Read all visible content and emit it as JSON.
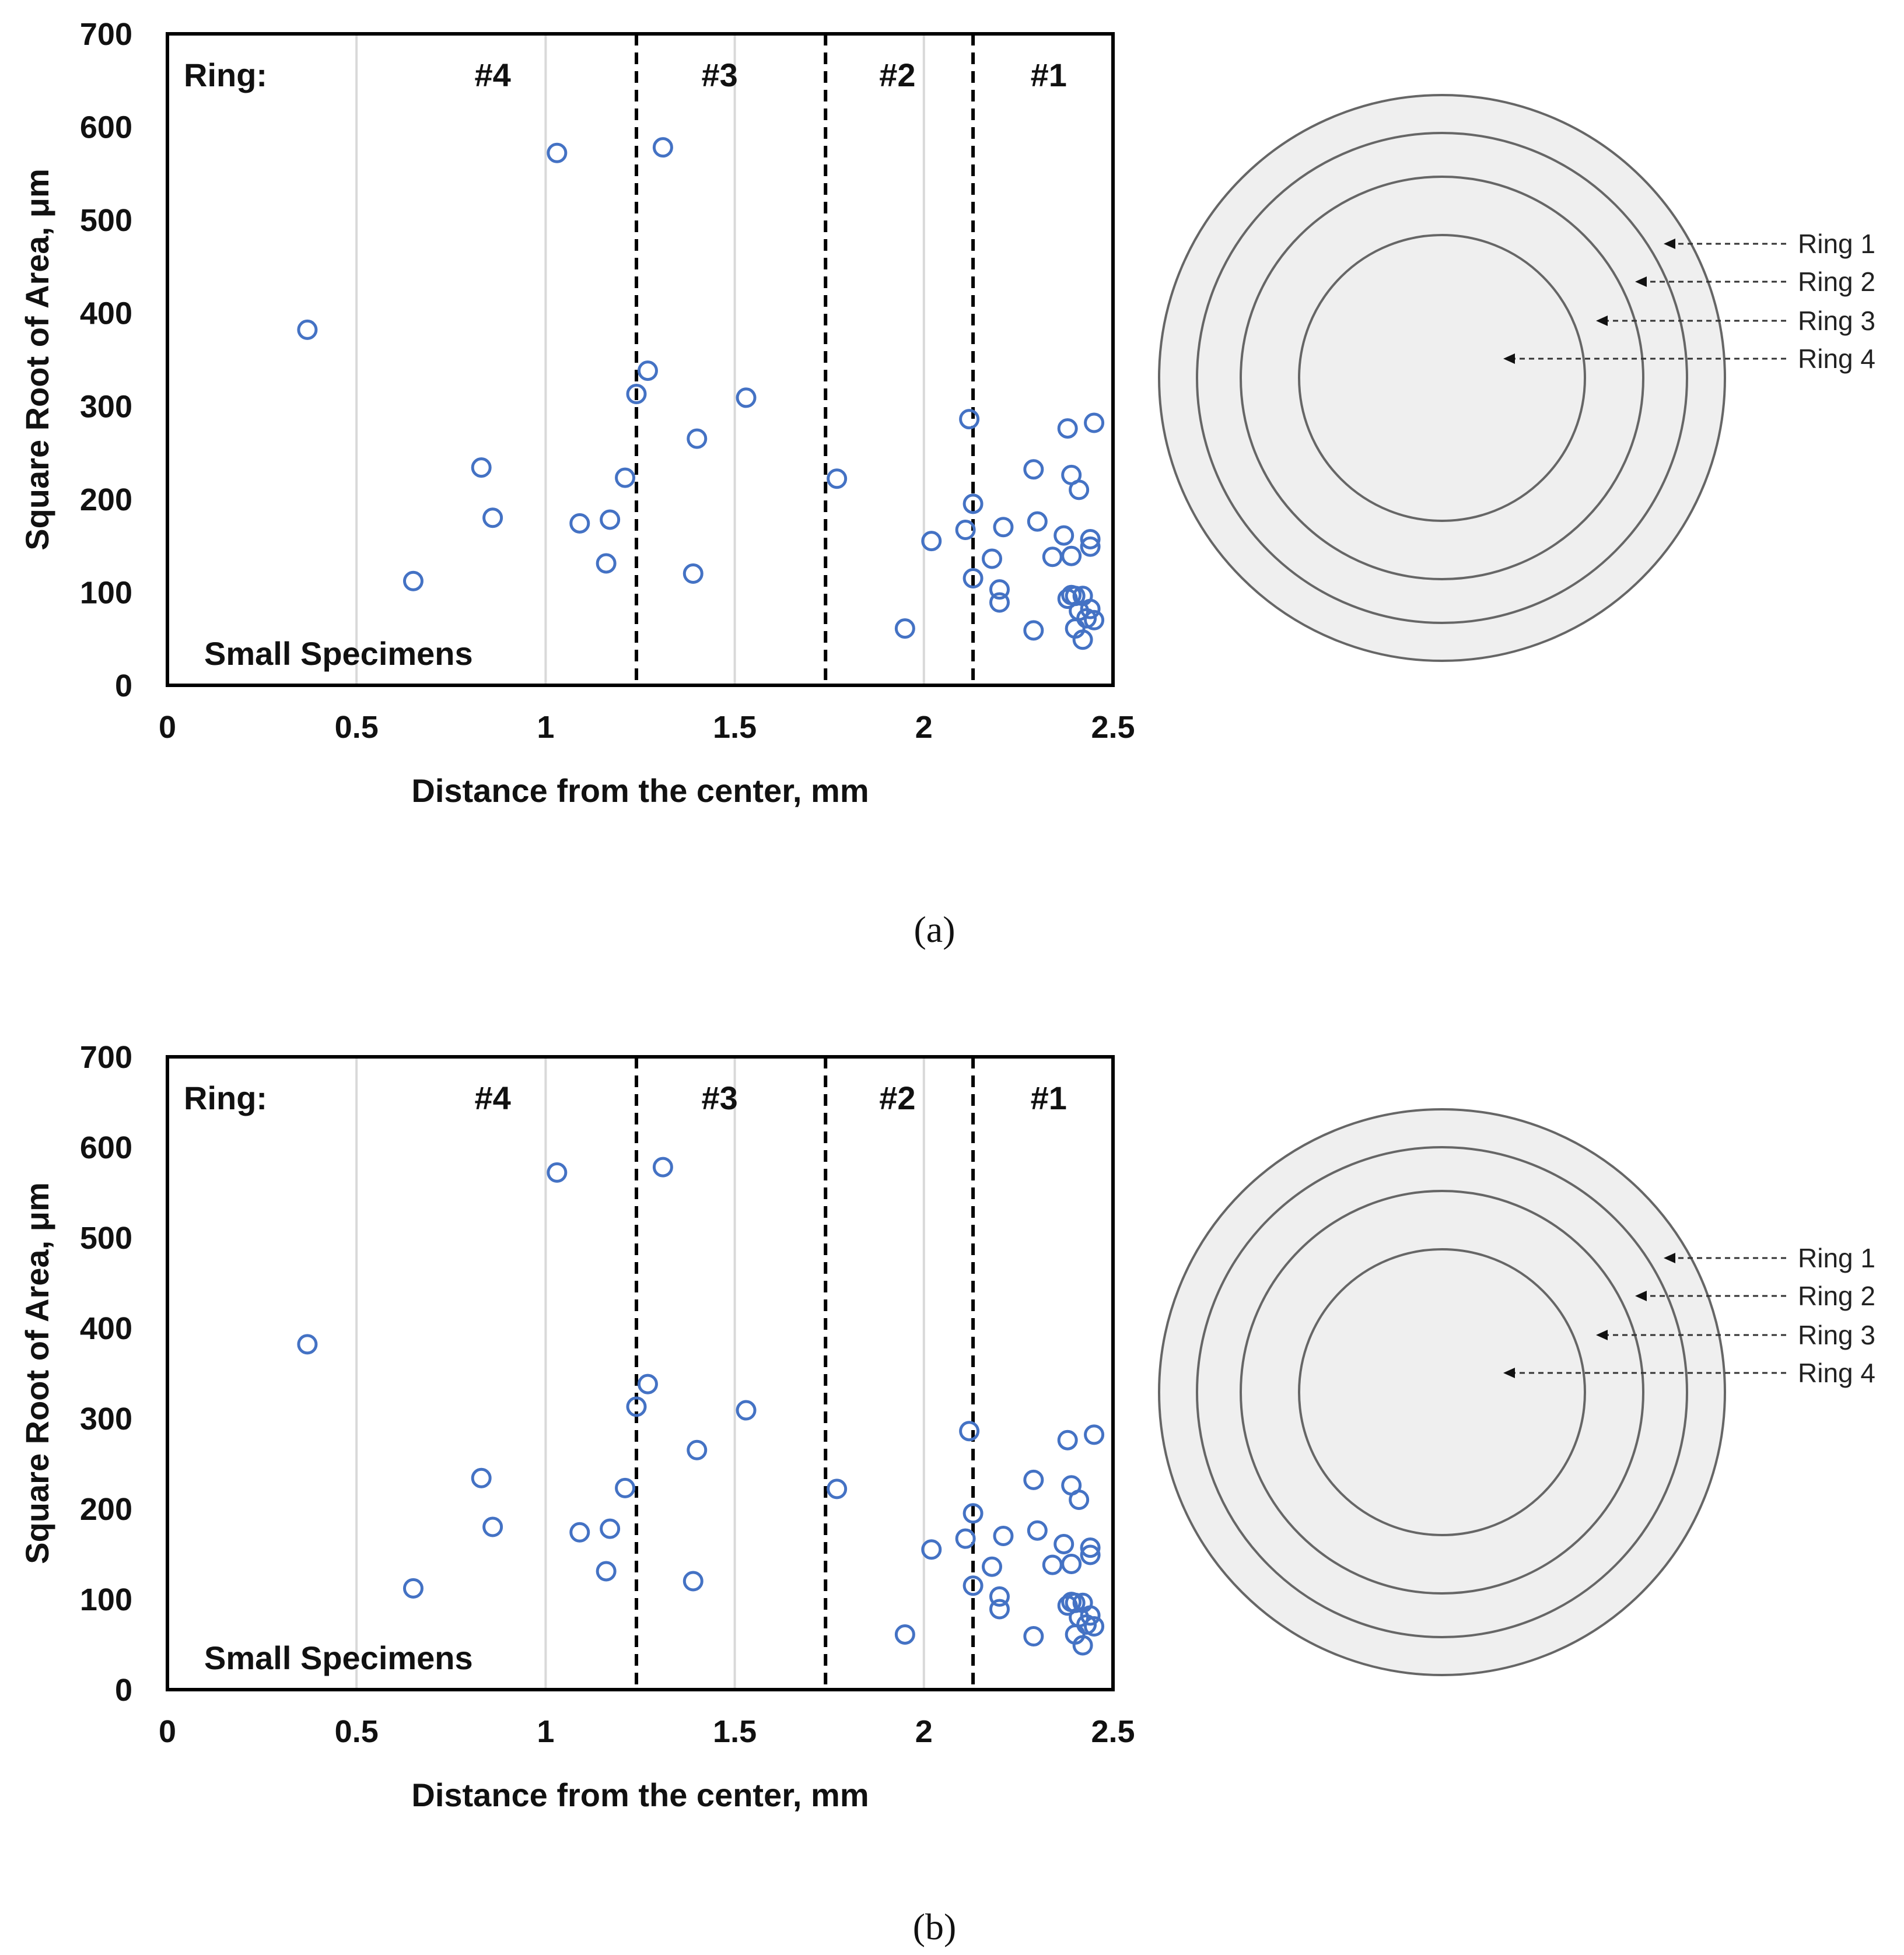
{
  "colors": {
    "marker": "#4472C4",
    "grid": "#D9D9D9",
    "frame": "#000000",
    "ring_fill": "#EFEFEF",
    "ring_stroke": "#666666"
  },
  "chart_data": [
    {
      "type": "scatter",
      "panel_label": "(a)",
      "panel_letter": "a",
      "xlabel": "Distance from the center, mm",
      "ylabel": "Square Root of Area, μm",
      "xlim": [
        0,
        2.5
      ],
      "ylim": [
        0,
        700
      ],
      "xticks": [
        0,
        0.5,
        1,
        1.5,
        2,
        2.5
      ],
      "xtick_labels": [
        "0",
        "0.5",
        "1",
        "1.5",
        "2",
        "2.5"
      ],
      "yticks": [
        0,
        100,
        200,
        300,
        400,
        500,
        600,
        700
      ],
      "ytick_labels": [
        "0",
        "100",
        "200",
        "300",
        "400",
        "500",
        "600",
        "700"
      ],
      "grid": "vertical",
      "annotation": "Small Specimens",
      "zone_title": "Ring:",
      "zone_boundaries": [
        1.24,
        1.74,
        2.13
      ],
      "zones": [
        {
          "label": "#4",
          "center": 0.86
        },
        {
          "label": "#3",
          "center": 1.46
        },
        {
          "label": "#2",
          "center": 1.93
        },
        {
          "label": "#1",
          "center": 2.33
        }
      ],
      "x": [
        0.37,
        0.65,
        0.83,
        0.86,
        1.03,
        1.09,
        1.16,
        1.17,
        1.21,
        1.24,
        1.27,
        1.31,
        1.39,
        1.4,
        1.53,
        1.77,
        1.95,
        2.02,
        2.11,
        2.12,
        2.13,
        2.13,
        2.18,
        2.2,
        2.2,
        2.21,
        2.29,
        2.29,
        2.3,
        2.34,
        2.37,
        2.38,
        2.38,
        2.39,
        2.39,
        2.39,
        2.4,
        2.4,
        2.41,
        2.41,
        2.42,
        2.42,
        2.43,
        2.44,
        2.44,
        2.44,
        2.45,
        2.45
      ],
      "y": [
        382,
        112,
        234,
        180,
        572,
        174,
        131,
        178,
        223,
        313,
        338,
        578,
        120,
        265,
        309,
        222,
        61,
        155,
        167,
        286,
        195,
        115,
        136,
        103,
        89,
        170,
        232,
        59,
        176,
        138,
        161,
        93,
        276,
        97,
        226,
        139,
        96,
        61,
        210,
        80,
        96,
        49,
        72,
        82,
        149,
        157,
        282,
        70
      ]
    },
    {
      "type": "scatter",
      "panel_label": "(b)",
      "panel_letter": "b",
      "xlabel": "Distance from the center, mm",
      "ylabel": "Square Root of Area, μm",
      "xlim": [
        0,
        2.5
      ],
      "ylim": [
        0,
        700
      ],
      "xticks": [
        0,
        0.5,
        1,
        1.5,
        2,
        2.5
      ],
      "xtick_labels": [
        "0",
        "0.5",
        "1",
        "1.5",
        "2",
        "2.5"
      ],
      "yticks": [
        0,
        100,
        200,
        300,
        400,
        500,
        600,
        700
      ],
      "ytick_labels": [
        "0",
        "100",
        "200",
        "300",
        "400",
        "500",
        "600",
        "700"
      ],
      "grid": "vertical",
      "annotation": "Small Specimens",
      "zone_title": "Ring:",
      "zone_boundaries": [
        1.24,
        1.74,
        2.13
      ],
      "zones": [
        {
          "label": "#4",
          "center": 0.86
        },
        {
          "label": "#3",
          "center": 1.46
        },
        {
          "label": "#2",
          "center": 1.93
        },
        {
          "label": "#1",
          "center": 2.33
        }
      ],
      "x": [
        0.37,
        0.65,
        0.83,
        0.86,
        1.03,
        1.09,
        1.16,
        1.17,
        1.21,
        1.24,
        1.27,
        1.31,
        1.39,
        1.4,
        1.53,
        1.77,
        1.95,
        2.02,
        2.11,
        2.12,
        2.13,
        2.13,
        2.18,
        2.2,
        2.2,
        2.21,
        2.29,
        2.29,
        2.3,
        2.34,
        2.37,
        2.38,
        2.38,
        2.39,
        2.39,
        2.39,
        2.4,
        2.4,
        2.41,
        2.41,
        2.42,
        2.42,
        2.43,
        2.44,
        2.44,
        2.44,
        2.45,
        2.45
      ],
      "y": [
        382,
        112,
        234,
        180,
        572,
        174,
        131,
        178,
        223,
        313,
        338,
        578,
        120,
        265,
        309,
        222,
        61,
        155,
        167,
        286,
        195,
        115,
        136,
        103,
        89,
        170,
        232,
        59,
        176,
        138,
        161,
        93,
        276,
        97,
        226,
        139,
        96,
        61,
        210,
        80,
        96,
        49,
        72,
        82,
        149,
        157,
        282,
        70
      ]
    }
  ],
  "ring_diagram": {
    "labels": [
      "Ring 1",
      "Ring 2",
      "Ring 3",
      "Ring 4"
    ]
  }
}
